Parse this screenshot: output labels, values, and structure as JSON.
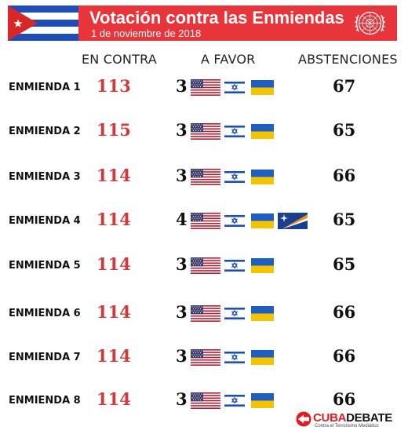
{
  "header": {
    "title": "Votación contra las Enmiendas",
    "date": "1 de noviembre de 2018",
    "left_flag": "cuba-flag-icon",
    "right_emblem": "united-nations-emblem-icon",
    "background_color": "#e8343b"
  },
  "columns": {
    "against": "EN CONTRA",
    "for": "A FAVOR",
    "abstentions": "ABSTENCIONES"
  },
  "colors": {
    "against_value": "#d03a3a",
    "other_values": "#111111"
  },
  "rows": [
    {
      "label": "ENMIENDA 1",
      "against": "113",
      "for": "3",
      "abstentions": "67",
      "for_flags": [
        "united-states-flag-icon",
        "israel-flag-icon",
        "ukraine-flag-icon"
      ]
    },
    {
      "label": "ENMIENDA 2",
      "against": "115",
      "for": "3",
      "abstentions": "65",
      "for_flags": [
        "united-states-flag-icon",
        "israel-flag-icon",
        "ukraine-flag-icon"
      ]
    },
    {
      "label": "ENMIENDA 3",
      "against": "114",
      "for": "3",
      "abstentions": "66",
      "for_flags": [
        "united-states-flag-icon",
        "israel-flag-icon",
        "ukraine-flag-icon"
      ]
    },
    {
      "label": "ENMIENDA 4",
      "against": "114",
      "for": "4",
      "abstentions": "65",
      "for_flags": [
        "united-states-flag-icon",
        "israel-flag-icon",
        "ukraine-flag-icon",
        "marshall-islands-flag-icon"
      ]
    },
    {
      "label": "ENMIENDA 5",
      "against": "114",
      "for": "3",
      "abstentions": "65",
      "for_flags": [
        "united-states-flag-icon",
        "israel-flag-icon",
        "ukraine-flag-icon"
      ]
    },
    {
      "label": "ENMIENDA 6",
      "against": "114",
      "for": "3",
      "abstentions": "66",
      "for_flags": [
        "united-states-flag-icon",
        "israel-flag-icon",
        "ukraine-flag-icon"
      ]
    },
    {
      "label": "ENMIENDA 7",
      "against": "114",
      "for": "3",
      "abstentions": "66",
      "for_flags": [
        "united-states-flag-icon",
        "israel-flag-icon",
        "ukraine-flag-icon"
      ]
    },
    {
      "label": "ENMIENDA 8",
      "against": "114",
      "for": "3",
      "abstentions": "66",
      "for_flags": [
        "united-states-flag-icon",
        "israel-flag-icon",
        "ukraine-flag-icon"
      ]
    }
  ],
  "footer": {
    "logo_part1": "CUBA",
    "logo_part2": "DEBATE",
    "tagline": "Contra el Terrorismo Mediático",
    "logo_icon": "cubadebate-logo-icon"
  }
}
